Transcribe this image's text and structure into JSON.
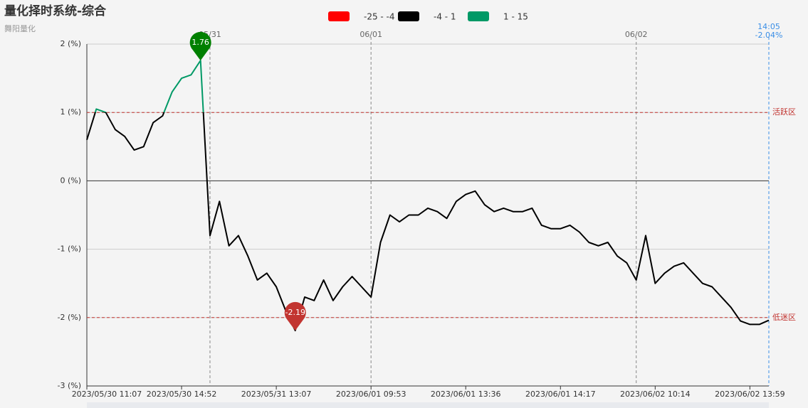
{
  "chart_data": {
    "type": "line",
    "title": "量化择时系统-综合",
    "subtitle": "舞阳量化",
    "visual_map": [
      {
        "min": -25,
        "max": -4,
        "label": "-25 - -4",
        "color": "#ff0000"
      },
      {
        "min": -4,
        "max": 1,
        "label": "-4 - 1",
        "color": "#000000"
      },
      {
        "min": 1,
        "max": 15,
        "label": "1 - 15",
        "color": "#009966"
      }
    ],
    "categories": [
      "2023/05/30 11:07",
      null,
      null,
      null,
      null,
      null,
      null,
      null,
      null,
      null,
      "2023/05/30 14:52",
      null,
      null,
      null,
      null,
      null,
      null,
      null,
      null,
      null,
      "2023/05/31 13:07",
      null,
      null,
      null,
      null,
      null,
      null,
      null,
      null,
      null,
      "2023/06/01 09:53",
      null,
      null,
      null,
      null,
      null,
      null,
      null,
      null,
      null,
      "2023/06/01 13:36",
      null,
      null,
      null,
      null,
      null,
      null,
      null,
      null,
      null,
      "2023/06/01 14:17",
      null,
      null,
      null,
      null,
      null,
      null,
      null,
      null,
      null,
      "2023/06/02 10:14",
      null,
      null,
      null,
      null,
      null,
      null,
      null,
      null,
      null,
      "2023/06/02 13:59",
      null,
      null
    ],
    "series": [
      {
        "values": [
          0.6,
          1.05,
          1.0,
          0.75,
          0.65,
          0.45,
          0.5,
          0.85,
          0.95,
          1.3,
          1.5,
          1.55,
          1.76,
          -0.8,
          -0.3,
          -0.95,
          -0.8,
          -1.1,
          -1.45,
          -1.35,
          -1.55,
          -1.9,
          -2.19,
          -1.7,
          -1.75,
          -1.45,
          -1.75,
          -1.55,
          -1.4,
          -1.55,
          -1.7,
          -0.9,
          -0.5,
          -0.6,
          -0.5,
          -0.5,
          -0.4,
          -0.45,
          -0.55,
          -0.3,
          -0.2,
          -0.15,
          -0.35,
          -0.45,
          -0.4,
          -0.45,
          -0.45,
          -0.4,
          -0.65,
          -0.7,
          -0.7,
          -0.65,
          -0.75,
          -0.9,
          -0.95,
          -0.9,
          -1.1,
          -1.2,
          -1.45,
          -0.8,
          -1.5,
          -1.35,
          -1.25,
          -1.2,
          -1.35,
          -1.5,
          -1.55,
          -1.7,
          -1.85,
          -2.05,
          -2.1,
          -2.1,
          -2.04
        ]
      }
    ],
    "ylim": [
      -3,
      2
    ],
    "yticks": [
      {
        "value": -3,
        "label": "-3 (%)"
      },
      {
        "value": -2,
        "label": "-2 (%)"
      },
      {
        "value": -1,
        "label": "-1 (%)"
      },
      {
        "value": 0,
        "label": "0 (%)"
      },
      {
        "value": 1,
        "label": "1 (%)"
      },
      {
        "value": 2,
        "label": "2 (%)"
      }
    ],
    "grid": true,
    "mark_lines": [
      {
        "value": 1,
        "label": "活跃区",
        "color": "#c23531"
      },
      {
        "value": -2,
        "label": "低迷区",
        "color": "#c23531"
      }
    ],
    "mark_points": [
      {
        "index": 12,
        "value": 1.76,
        "color": "#008000"
      },
      {
        "index": 22,
        "value": -2.19,
        "color": "#c23531"
      }
    ],
    "day_markers": [
      {
        "index": 13,
        "label": "05/31"
      },
      {
        "index": 30,
        "label": "06/01"
      },
      {
        "index": 58,
        "label": "06/02"
      }
    ],
    "end_marker": {
      "time": "14:05",
      "label": "-2.04%",
      "color": "#3a8ee6"
    }
  }
}
